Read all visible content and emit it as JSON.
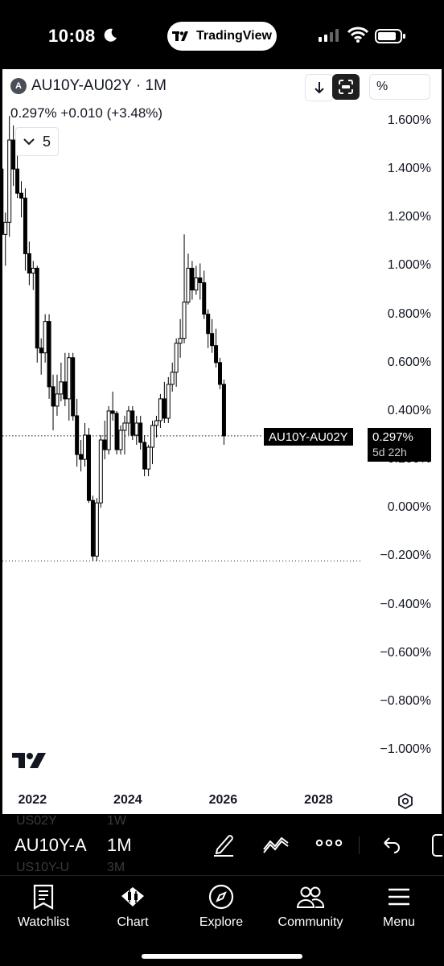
{
  "status_bar": {
    "time": "10:08",
    "app_pill": "TradingView"
  },
  "chart_header": {
    "symbol_badge": "A",
    "symbol_title": "AU10Y-AU02Y · 1M",
    "last_value": "0.297%",
    "change_abs": "+0.010",
    "change_pct": "(+3.48%)",
    "indicators_count": "5",
    "pct_button": "%"
  },
  "price_tag": {
    "symbol": "AU10Y-AU02Y",
    "value": "0.297%",
    "countdown": "5d 22h"
  },
  "y_axis_labels": [
    "1.600%",
    "1.400%",
    "1.200%",
    "1.000%",
    "0.800%",
    "0.600%",
    "0.400%",
    "0.200%",
    "0.000%",
    "−0.200%",
    "−0.400%",
    "−0.600%",
    "−0.800%",
    "−1.000%"
  ],
  "x_axis_labels": [
    "2022",
    "2024",
    "2026",
    "2028"
  ],
  "symbol_strip": {
    "ghost_top_symbol": "US02Y",
    "ghost_top_interval": "1W",
    "symbol": "AU10Y-A",
    "interval": "1M",
    "ghost_bottom_symbol": "US10Y-U",
    "ghost_bottom_interval": "3M"
  },
  "tabs": [
    {
      "label": "Watchlist",
      "icon": "watchlist-icon"
    },
    {
      "label": "Chart",
      "icon": "chart-icon"
    },
    {
      "label": "Explore",
      "icon": "compass-icon"
    },
    {
      "label": "Community",
      "icon": "community-icon"
    },
    {
      "label": "Menu",
      "icon": "menu-icon"
    }
  ],
  "chart_data": {
    "type": "candlestick",
    "title": "AU10Y-AU02Y · 1M",
    "ylabel": "%",
    "ylim": [
      -1.05,
      1.65
    ],
    "x_ticks": [
      "2022",
      "2024",
      "2026",
      "2028"
    ],
    "last_price": 0.297,
    "low_line": -0.22,
    "candles": [
      {
        "t": "2021-06",
        "o": 1.55,
        "h": 1.63,
        "l": 1.45,
        "c": 1.48
      },
      {
        "t": "2021-07",
        "o": 1.48,
        "h": 1.52,
        "l": 1.35,
        "c": 1.4
      },
      {
        "t": "2021-08",
        "o": 1.4,
        "h": 1.45,
        "l": 1.07,
        "c": 1.13
      },
      {
        "t": "2021-09",
        "o": 1.13,
        "h": 1.22,
        "l": 1.0,
        "c": 1.18
      },
      {
        "t": "2021-10",
        "o": 1.18,
        "h": 1.62,
        "l": 1.12,
        "c": 1.52
      },
      {
        "t": "2021-11",
        "o": 1.52,
        "h": 1.58,
        "l": 1.33,
        "c": 1.4
      },
      {
        "t": "2021-12",
        "o": 1.4,
        "h": 1.48,
        "l": 1.28,
        "c": 1.3
      },
      {
        "t": "2022-01",
        "o": 1.3,
        "h": 1.35,
        "l": 1.2,
        "c": 1.28
      },
      {
        "t": "2022-02",
        "o": 1.28,
        "h": 1.32,
        "l": 0.98,
        "c": 1.05
      },
      {
        "t": "2022-03",
        "o": 1.05,
        "h": 1.1,
        "l": 0.92,
        "c": 0.97
      },
      {
        "t": "2022-04",
        "o": 0.97,
        "h": 1.02,
        "l": 0.9,
        "c": 0.99
      },
      {
        "t": "2022-05",
        "o": 0.99,
        "h": 1.0,
        "l": 0.6,
        "c": 0.66
      },
      {
        "t": "2022-06",
        "o": 0.66,
        "h": 0.7,
        "l": 0.55,
        "c": 0.64
      },
      {
        "t": "2022-07",
        "o": 0.64,
        "h": 0.8,
        "l": 0.6,
        "c": 0.77
      },
      {
        "t": "2022-08",
        "o": 0.77,
        "h": 0.8,
        "l": 0.45,
        "c": 0.5
      },
      {
        "t": "2022-09",
        "o": 0.5,
        "h": 0.55,
        "l": 0.32,
        "c": 0.42
      },
      {
        "t": "2022-10",
        "o": 0.42,
        "h": 0.55,
        "l": 0.38,
        "c": 0.47
      },
      {
        "t": "2022-11",
        "o": 0.47,
        "h": 0.6,
        "l": 0.44,
        "c": 0.52
      },
      {
        "t": "2022-12",
        "o": 0.52,
        "h": 0.64,
        "l": 0.42,
        "c": 0.45
      },
      {
        "t": "2023-01",
        "o": 0.45,
        "h": 0.64,
        "l": 0.36,
        "c": 0.62
      },
      {
        "t": "2023-02",
        "o": 0.62,
        "h": 0.64,
        "l": 0.36,
        "c": 0.38
      },
      {
        "t": "2023-03",
        "o": 0.38,
        "h": 0.45,
        "l": 0.17,
        "c": 0.22
      },
      {
        "t": "2023-04",
        "o": 0.22,
        "h": 0.28,
        "l": 0.15,
        "c": 0.2
      },
      {
        "t": "2023-05",
        "o": 0.2,
        "h": 0.35,
        "l": 0.17,
        "c": 0.3
      },
      {
        "t": "2023-06",
        "o": 0.3,
        "h": 0.33,
        "l": 0.02,
        "c": 0.03
      },
      {
        "t": "2023-07",
        "o": 0.03,
        "h": 0.05,
        "l": -0.22,
        "c": -0.2
      },
      {
        "t": "2023-08",
        "o": -0.2,
        "h": 0.04,
        "l": -0.22,
        "c": 0.02
      },
      {
        "t": "2023-09",
        "o": 0.02,
        "h": 0.3,
        "l": 0.0,
        "c": 0.28
      },
      {
        "t": "2023-10",
        "o": 0.28,
        "h": 0.36,
        "l": 0.2,
        "c": 0.24
      },
      {
        "t": "2023-11",
        "o": 0.24,
        "h": 0.42,
        "l": 0.22,
        "c": 0.4
      },
      {
        "t": "2023-12",
        "o": 0.4,
        "h": 0.48,
        "l": 0.36,
        "c": 0.39
      },
      {
        "t": "2024-01",
        "o": 0.39,
        "h": 0.4,
        "l": 0.22,
        "c": 0.24
      },
      {
        "t": "2024-02",
        "o": 0.24,
        "h": 0.34,
        "l": 0.22,
        "c": 0.32
      },
      {
        "t": "2024-03",
        "o": 0.32,
        "h": 0.38,
        "l": 0.22,
        "c": 0.35
      },
      {
        "t": "2024-04",
        "o": 0.35,
        "h": 0.42,
        "l": 0.3,
        "c": 0.4
      },
      {
        "t": "2024-05",
        "o": 0.4,
        "h": 0.42,
        "l": 0.28,
        "c": 0.3
      },
      {
        "t": "2024-06",
        "o": 0.3,
        "h": 0.38,
        "l": 0.26,
        "c": 0.35
      },
      {
        "t": "2024-07",
        "o": 0.35,
        "h": 0.38,
        "l": 0.24,
        "c": 0.27
      },
      {
        "t": "2024-08",
        "o": 0.27,
        "h": 0.3,
        "l": 0.13,
        "c": 0.16
      },
      {
        "t": "2024-09",
        "o": 0.16,
        "h": 0.26,
        "l": 0.13,
        "c": 0.25
      },
      {
        "t": "2024-10",
        "o": 0.25,
        "h": 0.36,
        "l": 0.18,
        "c": 0.34
      },
      {
        "t": "2024-11",
        "o": 0.34,
        "h": 0.38,
        "l": 0.29,
        "c": 0.36
      },
      {
        "t": "2024-12",
        "o": 0.36,
        "h": 0.47,
        "l": 0.33,
        "c": 0.45
      },
      {
        "t": "2025-01",
        "o": 0.45,
        "h": 0.52,
        "l": 0.35,
        "c": 0.37
      },
      {
        "t": "2025-02",
        "o": 0.37,
        "h": 0.54,
        "l": 0.35,
        "c": 0.51
      },
      {
        "t": "2025-03",
        "o": 0.51,
        "h": 0.6,
        "l": 0.48,
        "c": 0.56
      },
      {
        "t": "2025-04",
        "o": 0.56,
        "h": 0.7,
        "l": 0.5,
        "c": 0.68
      },
      {
        "t": "2025-05",
        "o": 0.68,
        "h": 0.78,
        "l": 0.62,
        "c": 0.7
      },
      {
        "t": "2025-06",
        "o": 0.7,
        "h": 1.13,
        "l": 0.68,
        "c": 0.85
      },
      {
        "t": "2025-07",
        "o": 0.85,
        "h": 1.05,
        "l": 0.84,
        "c": 0.99
      },
      {
        "t": "2025-08",
        "o": 0.99,
        "h": 1.02,
        "l": 0.86,
        "c": 0.9
      },
      {
        "t": "2025-09",
        "o": 0.9,
        "h": 1.0,
        "l": 0.88,
        "c": 0.95
      },
      {
        "t": "2025-10",
        "o": 0.95,
        "h": 1.01,
        "l": 0.86,
        "c": 0.93
      },
      {
        "t": "2025-11",
        "o": 0.93,
        "h": 0.98,
        "l": 0.78,
        "c": 0.8
      },
      {
        "t": "2025-12",
        "o": 0.8,
        "h": 0.82,
        "l": 0.66,
        "c": 0.72
      },
      {
        "t": "2026-01",
        "o": 0.72,
        "h": 0.78,
        "l": 0.64,
        "c": 0.67
      },
      {
        "t": "2026-02",
        "o": 0.67,
        "h": 0.74,
        "l": 0.58,
        "c": 0.6
      },
      {
        "t": "2026-03",
        "o": 0.6,
        "h": 0.62,
        "l": 0.49,
        "c": 0.51
      },
      {
        "t": "2026-04",
        "o": 0.51,
        "h": 0.53,
        "l": 0.26,
        "c": 0.297
      }
    ]
  }
}
